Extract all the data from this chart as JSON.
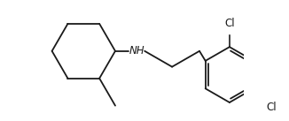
{
  "bg_color": "#ffffff",
  "line_color": "#1a1a1a",
  "text_color": "#1a1a1a",
  "line_width": 1.3,
  "font_size": 8.5,
  "figsize": [
    3.26,
    1.37
  ],
  "dpi": 100,
  "NH_label": "NH",
  "Cl1_label": "Cl",
  "Cl2_label": "Cl"
}
